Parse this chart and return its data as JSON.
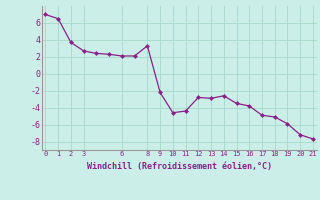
{
  "x": [
    0,
    1,
    2,
    3,
    4,
    5,
    6,
    7,
    8,
    9,
    10,
    11,
    12,
    13,
    14,
    15,
    16,
    17,
    18,
    19,
    20,
    21
  ],
  "y": [
    7.0,
    6.5,
    3.7,
    2.7,
    2.4,
    2.3,
    2.1,
    2.1,
    3.3,
    -2.2,
    -4.6,
    -4.4,
    -2.8,
    -2.9,
    -2.6,
    -3.5,
    -3.8,
    -4.9,
    -5.1,
    -5.9,
    -7.2,
    -7.7
  ],
  "line_color": "#882288",
  "marker": "D",
  "marker_size": 2.5,
  "bg_color": "#cceee8",
  "grid_color": "#aaddcc",
  "xlabel": "Windchill (Refroidissement éolien,°C)",
  "xlabel_color": "#882288",
  "tick_color": "#882288",
  "ylim": [
    -9,
    8
  ],
  "xlim": [
    -0.3,
    21.3
  ],
  "yticks": [
    -8,
    -6,
    -4,
    -2,
    0,
    2,
    4,
    6
  ],
  "xtick_positions": [
    0,
    1,
    2,
    3,
    6,
    8,
    9,
    10,
    11,
    12,
    13,
    14,
    15,
    16,
    17,
    18,
    19,
    20,
    21
  ],
  "xtick_labels": [
    "0",
    "1",
    "2",
    "3",
    "6",
    "8",
    "9",
    "10",
    "11",
    "12",
    "13",
    "14",
    "15",
    "16",
    "17",
    "18",
    "19",
    "20",
    "21"
  ]
}
